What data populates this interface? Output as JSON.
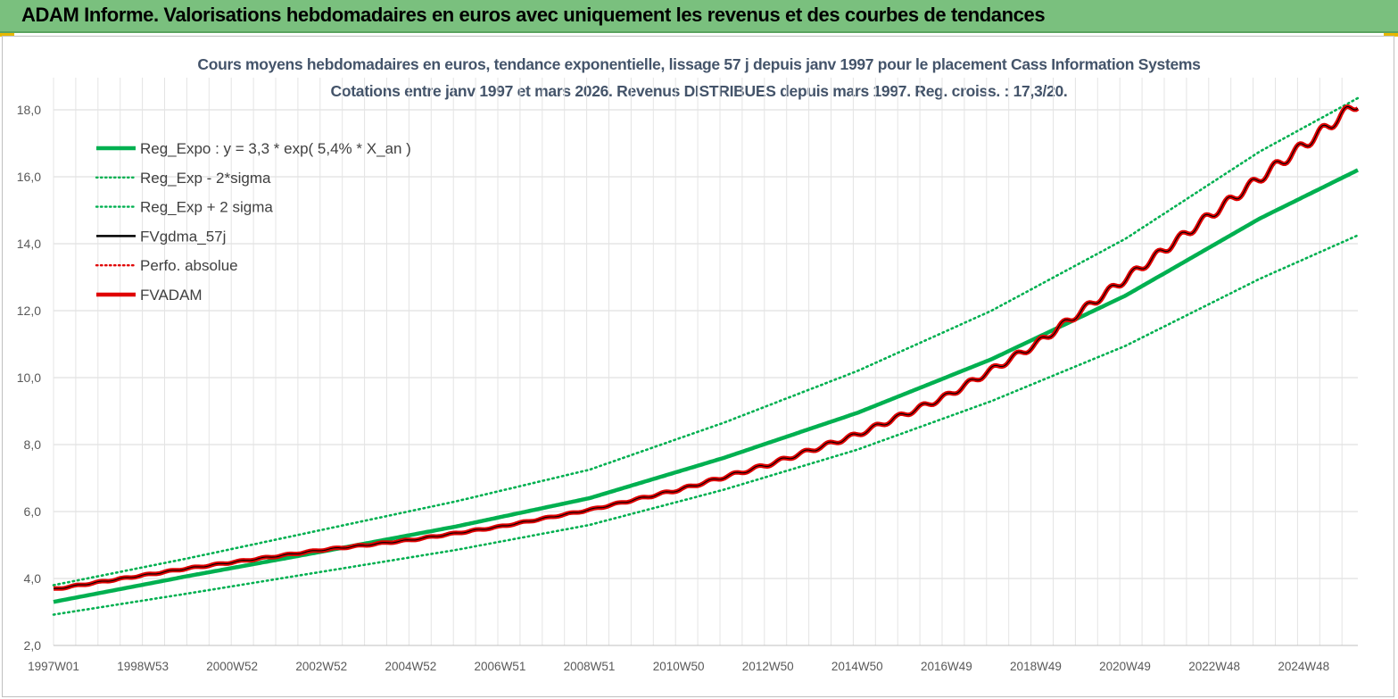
{
  "header": {
    "title": "ADAM Informe. Valorisations hebdomadaires en euros avec uniquement les revenus et des courbes de tendances"
  },
  "colors": {
    "banner": "#7ac07e",
    "green": "#00b050",
    "red": "#e00000",
    "black": "#000000",
    "grid": "#d9d9d9"
  },
  "chart_data": {
    "type": "line",
    "title": "Cours moyens hebdomadaires en euros, tendance exponentielle, lissage 57 j depuis janv 1997 pour le placement Cass Information Systems",
    "subtitle": "Cotations entre janv 1997 et mars 2026. Revenus DISTRIBUES depuis mars 1997. Reg. croiss. : 17,3/20.",
    "xlabel": "",
    "ylabel": "",
    "ylim": [
      2.0,
      18.0
    ],
    "y_ticks": [
      "2,0",
      "4,0",
      "6,0",
      "8,0",
      "10,0",
      "12,0",
      "14,0",
      "16,0",
      "18,0"
    ],
    "x_range_years": [
      1997.0,
      2026.2
    ],
    "x_tick_labels": [
      "1997W01",
      "1998W53",
      "2000W52",
      "2002W52",
      "2004W52",
      "2006W51",
      "2008W51",
      "2010W50",
      "2012W50",
      "2014W50",
      "2016W49",
      "2018W49",
      "2020W49",
      "2022W48",
      "2024W48"
    ],
    "grid": true,
    "legend_position": "top-left",
    "legend": [
      {
        "label": "Reg_Expo : y = 3,3 * exp( 5,4% *  X_an )",
        "color": "#00b050",
        "style": "solid-thick"
      },
      {
        "label": "Reg_Exp - 2*sigma",
        "color": "#00b050",
        "style": "dotted"
      },
      {
        "label": "Reg_Exp + 2 sigma",
        "color": "#00b050",
        "style": "dotted"
      },
      {
        "label": "FVgdma_57j",
        "color": "#000000",
        "style": "solid"
      },
      {
        "label": "Perfo. absolue",
        "color": "#e00000",
        "style": "dotted"
      },
      {
        "label": "FVADAM",
        "color": "#e00000",
        "style": "solid-thick"
      }
    ],
    "series": [
      {
        "name": "Reg_Expo : y = 3,3 * exp( 5,4% *  X_an )",
        "x": [
          1997.0,
          2000.0,
          2003.0,
          2006.0,
          2009.0,
          2012.0,
          2015.0,
          2018.0,
          2021.0,
          2024.0,
          2026.2
        ],
        "values": [
          3.3,
          4.07,
          4.8,
          5.55,
          6.4,
          7.6,
          8.95,
          10.55,
          12.45,
          14.75,
          16.2
        ]
      },
      {
        "name": "Reg_Exp - 2*sigma",
        "x": [
          1997.0,
          2000.0,
          2003.0,
          2006.0,
          2009.0,
          2012.0,
          2015.0,
          2018.0,
          2021.0,
          2024.0,
          2026.2
        ],
        "values": [
          2.92,
          3.55,
          4.2,
          4.85,
          5.6,
          6.65,
          7.85,
          9.3,
          10.95,
          12.95,
          14.25
        ]
      },
      {
        "name": "Reg_Exp + 2 sigma",
        "x": [
          1997.0,
          2000.0,
          2003.0,
          2006.0,
          2009.0,
          2012.0,
          2015.0,
          2018.0,
          2021.0,
          2024.0,
          2026.2
        ],
        "values": [
          3.8,
          4.6,
          5.45,
          6.3,
          7.25,
          8.65,
          10.2,
          12.0,
          14.15,
          16.75,
          18.35
        ]
      },
      {
        "name": "FVgdma_57j",
        "x": [
          1997.0,
          2000.0,
          2003.0,
          2005.0,
          2007.0,
          2009.0,
          2011.0,
          2013.0,
          2015.0,
          2017.0,
          2019.0,
          2021.0,
          2023.0,
          2025.0,
          2026.2
        ],
        "values": [
          3.68,
          4.3,
          4.85,
          5.15,
          5.55,
          6.05,
          6.65,
          7.4,
          8.3,
          9.45,
          11.0,
          12.95,
          14.95,
          16.95,
          18.2
        ]
      },
      {
        "name": "FVADAM",
        "x": [
          1997.0,
          2000.0,
          2003.0,
          2005.0,
          2007.0,
          2009.0,
          2011.0,
          2013.0,
          2015.0,
          2017.0,
          2019.0,
          2021.0,
          2023.0,
          2025.0,
          2026.2
        ],
        "values": [
          3.68,
          4.3,
          4.85,
          5.15,
          5.55,
          6.05,
          6.65,
          7.4,
          8.3,
          9.45,
          11.0,
          12.95,
          14.95,
          16.95,
          18.2
        ]
      }
    ]
  }
}
